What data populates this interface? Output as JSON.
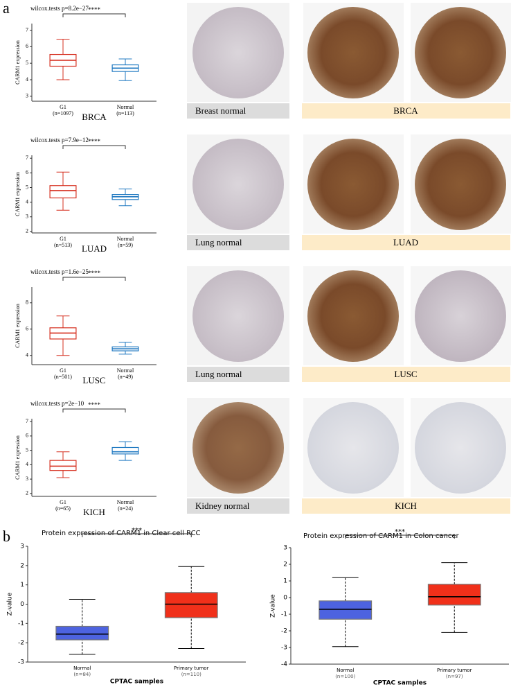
{
  "panel_labels": [
    "a",
    "b"
  ],
  "tissue_panels": [
    {
      "normal_label": "Breast normal",
      "tumor_label": "BRCA"
    },
    {
      "normal_label": "Lung normal",
      "tumor_label": "LUAD"
    },
    {
      "normal_label": "Lung normal",
      "tumor_label": "LUSC"
    },
    {
      "normal_label": "Kidney normal",
      "tumor_label": "KICH"
    }
  ],
  "chart_data": [
    {
      "type": "box",
      "title": "wilcox.tests p=8.2e−27",
      "significance": "****",
      "y_label": "CARM1 expression",
      "x_label": "BRCA",
      "categories": [
        "G1",
        "Normal"
      ],
      "category_notes": [
        "(n=1097)",
        "(n=113)"
      ],
      "colors": [
        "#d62f1f",
        "#1f78c1"
      ],
      "boxes": [
        {
          "low": 4.0,
          "q1": 4.82,
          "median": 5.18,
          "q3": 5.53,
          "high": 6.45
        },
        {
          "low": 3.95,
          "q1": 4.5,
          "median": 4.7,
          "q3": 4.9,
          "high": 5.26
        }
      ],
      "ylim": [
        2.7,
        7.4
      ],
      "yticks": [
        3,
        4,
        5,
        6,
        7
      ]
    },
    {
      "type": "box",
      "title": "wilcox.tests p=7.9e−12",
      "significance": "****",
      "y_label": "CARM1 expression",
      "x_label": "LUAD",
      "categories": [
        "G1",
        "Normal"
      ],
      "category_notes": [
        "(n=513)",
        "(n=59)"
      ],
      "colors": [
        "#d62f1f",
        "#1f78c1"
      ],
      "boxes": [
        {
          "low": 3.45,
          "q1": 4.29,
          "median": 4.79,
          "q3": 5.13,
          "high": 6.05
        },
        {
          "low": 3.76,
          "q1": 4.18,
          "median": 4.37,
          "q3": 4.52,
          "high": 4.9
        }
      ],
      "ylim": [
        1.9,
        7.2
      ],
      "yticks": [
        2,
        3,
        4,
        5,
        6,
        7
      ]
    },
    {
      "type": "box",
      "title": "wilcox.tests p=1.6e−25",
      "significance": "****",
      "y_label": "CARM1 expression",
      "x_label": "LUSC",
      "categories": [
        "G1",
        "Normal"
      ],
      "category_notes": [
        "(n=501)",
        "(n=49)"
      ],
      "colors": [
        "#d62f1f",
        "#1f78c1"
      ],
      "boxes": [
        {
          "low": 4.0,
          "q1": 5.25,
          "median": 5.7,
          "q3": 6.1,
          "high": 7.0
        },
        {
          "low": 4.1,
          "q1": 4.35,
          "median": 4.5,
          "q3": 4.65,
          "high": 5.0
        }
      ],
      "ylim": [
        3.3,
        9.2
      ],
      "yticks": [
        4,
        6,
        8
      ]
    },
    {
      "type": "box",
      "title": "wilcox.tests p=2e−10",
      "significance": "****",
      "y_label": "CARM1 expression",
      "x_label": "KICH",
      "categories": [
        "G1",
        "Normal"
      ],
      "category_notes": [
        "(n=65)",
        "(n=24)"
      ],
      "colors": [
        "#d62f1f",
        "#1f78c1"
      ],
      "boxes": [
        {
          "low": 3.1,
          "q1": 3.6,
          "median": 3.9,
          "q3": 4.3,
          "high": 4.9
        },
        {
          "low": 4.3,
          "q1": 4.75,
          "median": 4.9,
          "q3": 5.2,
          "high": 5.6
        }
      ],
      "ylim": [
        1.8,
        7.2
      ],
      "yticks": [
        2,
        3,
        4,
        5,
        6,
        7
      ]
    },
    {
      "type": "box",
      "title": "Protein expression of CARM1 in Clear cell RCC",
      "significance": "***",
      "y_label": "Z-value",
      "x_label": "CPTAC samples",
      "categories": [
        "Normal",
        "Primary tumor"
      ],
      "category_notes": [
        "(n=84)",
        "(n=110)"
      ],
      "colors": [
        "#4d63e0",
        "#f0301a"
      ],
      "boxes": [
        {
          "low": -2.6,
          "q1": -1.85,
          "median": -1.55,
          "q3": -1.15,
          "high": 0.25
        },
        {
          "low": -2.3,
          "q1": -0.7,
          "median": 0.0,
          "q3": 0.6,
          "high": 1.95
        }
      ],
      "ylim": [
        -3,
        3
      ],
      "yticks": [
        -3,
        -2,
        -1,
        0,
        1,
        2,
        3
      ]
    },
    {
      "type": "box",
      "title": "Protein expression of CARM1 in Colon cancer",
      "significance": "***",
      "y_label": "Z-value",
      "x_label": "CPTAC samples",
      "categories": [
        "Normal",
        "Primary tumor"
      ],
      "category_notes": [
        "(n=100)",
        "(n=97)"
      ],
      "colors": [
        "#4d63e0",
        "#f0301a"
      ],
      "boxes": [
        {
          "low": -2.95,
          "q1": -1.3,
          "median": -0.7,
          "q3": -0.2,
          "high": 1.2
        },
        {
          "low": -2.1,
          "q1": -0.45,
          "median": 0.05,
          "q3": 0.8,
          "high": 2.1
        }
      ],
      "ylim": [
        -4,
        3
      ],
      "yticks": [
        -4,
        -3,
        -2,
        -1,
        0,
        1,
        2,
        3
      ]
    }
  ]
}
